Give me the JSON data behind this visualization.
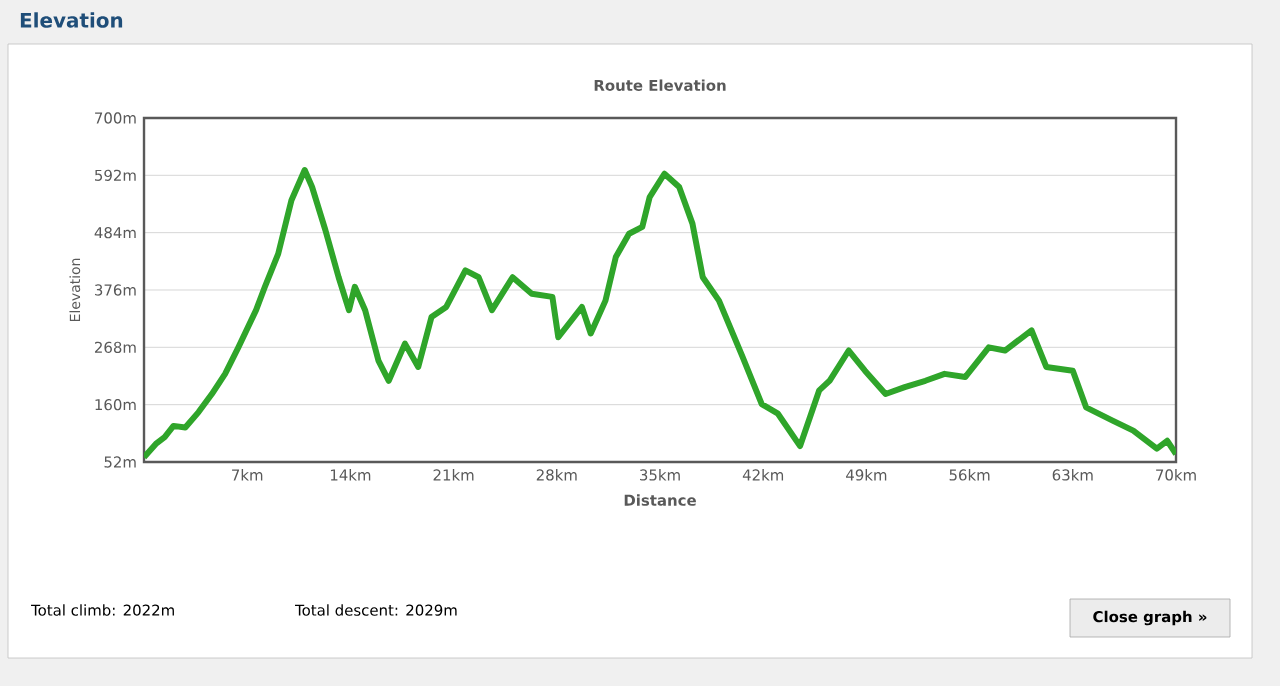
{
  "chart_data": {
    "type": "line",
    "title": "Route Elevation",
    "xlabel": "Distance",
    "ylabel": "Elevation",
    "annotations": [
      "Elevation",
      "Total climb: 2022m",
      "Total descent: 2029m",
      "Close graph »"
    ],
    "x": [
      0,
      0.8,
      1.4,
      2.0,
      2.8,
      3.7,
      4.6,
      5.5,
      6.4,
      7.6,
      8.2,
      9.1,
      10.0,
      10.9,
      11.4,
      12.3,
      13.2,
      13.9,
      14.3,
      15.0,
      15.9,
      16.6,
      17.7,
      18.6,
      19.5,
      20.5,
      21.8,
      22.7,
      23.6,
      25.0,
      26.3,
      27.7,
      28.1,
      29.0,
      29.7,
      30.3,
      31.3,
      32.0,
      32.9,
      33.8,
      34.3,
      35.3,
      36.3,
      37.2,
      37.9,
      39.0,
      40.6,
      41.9,
      43.0,
      44.5,
      45.8,
      46.5,
      47.8,
      48.9,
      50.3,
      51.6,
      53.0,
      54.3,
      55.7,
      57.3,
      58.4,
      60.2,
      61.2,
      63.0,
      63.9,
      65.7,
      67.1,
      68.7,
      69.4,
      70.0
    ],
    "series": [
      {
        "color": "#2fa52a",
        "values": [
          61,
          86,
          99,
          120,
          117,
          146,
          180,
          218,
          268,
          338,
          382,
          444,
          545,
          602,
          570,
          489,
          400,
          338,
          382,
          338,
          243,
          205,
          275,
          231,
          325,
          344,
          413,
          400,
          338,
          400,
          369,
          363,
          287,
          319,
          344,
          294,
          356,
          438,
          482,
          495,
          551,
          595,
          570,
          501,
          400,
          356,
          250,
          161,
          143,
          82,
          187,
          205,
          262,
          224,
          180,
          193,
          205,
          218,
          212,
          268,
          262,
          300,
          231,
          224,
          155,
          130,
          111,
          77,
          92,
          67
        ]
      }
    ],
    "xlim": [
      0,
      70
    ],
    "ylim": [
      52,
      700
    ],
    "xticks": [
      {
        "value": 7,
        "label": "7km"
      },
      {
        "value": 14,
        "label": "14km"
      },
      {
        "value": 21,
        "label": "21km"
      },
      {
        "value": 28,
        "label": "28km"
      },
      {
        "value": 35,
        "label": "35km"
      },
      {
        "value": 42,
        "label": "42km"
      },
      {
        "value": 49,
        "label": "49km"
      },
      {
        "value": 56,
        "label": "56km"
      },
      {
        "value": 63,
        "label": "63km"
      },
      {
        "value": 70,
        "label": "70km"
      }
    ],
    "yticks": [
      {
        "value": 52,
        "label": "52m"
      },
      {
        "value": 160,
        "label": "160m"
      },
      {
        "value": 268,
        "label": "268m"
      },
      {
        "value": 376,
        "label": "376m"
      },
      {
        "value": 484,
        "label": "484m"
      },
      {
        "value": 592,
        "label": "592m"
      },
      {
        "value": 700,
        "label": "700m"
      }
    ],
    "grid": "y",
    "marker": "none",
    "line_style": "solid"
  }
}
